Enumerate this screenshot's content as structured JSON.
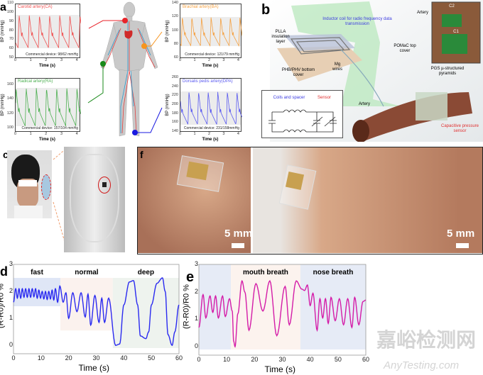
{
  "panels": {
    "a": "a",
    "b": "b",
    "c": "c",
    "d": "d",
    "e": "e",
    "f": "f"
  },
  "panel_a": {
    "xlabel": "Time (s)",
    "ylabel": "BP (mmHg)",
    "xticks": [
      "0",
      "1",
      "2",
      "3",
      "4"
    ],
    "charts": [
      {
        "title": "Carotid artery(CA)",
        "color": "#f05050",
        "ylim": [
          50,
          110
        ],
        "yticks": [
          "50",
          "60",
          "70",
          "80",
          "90",
          "100",
          "110"
        ],
        "range": [
          62,
          98
        ],
        "device": "Commercial device: 98/62 mmHg",
        "dot": "#e8232a"
      },
      {
        "title": "Brachial artery(BA)",
        "color": "#f5a040",
        "ylim": [
          60,
          140
        ],
        "yticks": [
          "60",
          "80",
          "100",
          "120",
          "140"
        ],
        "range": [
          79,
          121
        ],
        "device": "Commercial device: 121/79 mmHg",
        "dot": "#f7941d"
      },
      {
        "title": "Radical artery(RA)",
        "color": "#4caf50",
        "ylim": [
          95,
          170
        ],
        "yticks": [
          "100",
          "120",
          "140",
          "160"
        ],
        "range": [
          104,
          157
        ],
        "device": "Commercial device: 157/104 mmHg",
        "dot": "#1a8a1a"
      },
      {
        "title": "Dorsalis pedis artery(DPA)",
        "color": "#5a5af0",
        "ylim": [
          140,
          260
        ],
        "yticks": [
          "140",
          "160",
          "180",
          "200",
          "220",
          "240",
          "260"
        ],
        "range": [
          158,
          231
        ],
        "device": "Commercial device: 231/158mmHg",
        "dot": "#1a1ae0"
      }
    ]
  },
  "panel_b": {
    "inductor": "Inductor coil for radio frequency data transmission",
    "plla": "PLLA insulation layer",
    "pomac": "POMaC top cover",
    "phb": "PHB/PHV bottom cover",
    "mg": "Mg wires",
    "artery": "Artery",
    "artery_inset": "Artery",
    "pgs": "PGS µ-structured pyramids",
    "sensor_label": "Capacitive pressure sensor",
    "circuit_coils": "Coils and spacer",
    "circuit_sensor": "Sensor",
    "c1": "C1",
    "c2": "C2"
  },
  "panel_f": {
    "scale_left": "5 mm",
    "scale_right": "5 mm"
  },
  "chart_data": [
    {
      "type": "line",
      "panel": "d",
      "xlabel": "Time (s)",
      "ylabel": "(R-R0)/R0 %",
      "xlim": [
        0,
        60
      ],
      "ylim": [
        -0.1,
        3
      ],
      "xticks": [
        "0",
        "10",
        "20",
        "30",
        "40",
        "50",
        "60"
      ],
      "yticks": [
        "0",
        "1",
        "2",
        "3"
      ],
      "color": "#2a2af0",
      "regions": [
        {
          "label": "fast",
          "x": [
            0,
            17
          ],
          "y": [
            1.45,
            2.5
          ],
          "color": "#dfe6f6"
        },
        {
          "label": "normal",
          "x": [
            17,
            36
          ],
          "y": [
            0.55,
            2.5
          ],
          "color": "#fbf2ee"
        },
        {
          "label": "deep",
          "x": [
            36,
            60
          ],
          "y": [
            -0.1,
            2.5
          ],
          "color": "#eef3ee"
        }
      ],
      "x": [
        0,
        0.8,
        1.4,
        2.0,
        2.6,
        3.2,
        3.8,
        4.4,
        5.0,
        5.6,
        6.2,
        6.8,
        7.4,
        8.0,
        8.6,
        9.2,
        9.8,
        10.4,
        11.0,
        11.6,
        12.2,
        12.8,
        13.4,
        14.0,
        14.6,
        15.2,
        16.0,
        16.8,
        18,
        19,
        20,
        21.5,
        23,
        24.5,
        26,
        27,
        28,
        29.5,
        31,
        32,
        33,
        34.5,
        37,
        38.5,
        40,
        42,
        43.5,
        45,
        46,
        48,
        49,
        50,
        52,
        54,
        55,
        56,
        57.5,
        58.5,
        60
      ],
      "y": [
        1.6,
        2.1,
        1.75,
        2.1,
        1.75,
        2.1,
        1.78,
        2.1,
        1.78,
        2.1,
        1.78,
        2.1,
        1.8,
        2.1,
        1.75,
        2.05,
        1.75,
        2.0,
        1.72,
        2.0,
        1.7,
        2.0,
        1.72,
        2.05,
        1.68,
        2.1,
        1.6,
        2.2,
        1.6,
        1.95,
        1.0,
        1.95,
        1.25,
        1.95,
        1.05,
        1.9,
        0.75,
        1.85,
        0.85,
        1.75,
        0.85,
        1.75,
        0.0,
        0.05,
        1.5,
        2.35,
        2.4,
        1.5,
        0.35,
        0.25,
        0.5,
        1.5,
        2.3,
        2.5,
        2.0,
        0.4,
        0.0,
        0.5,
        1.5
      ]
    },
    {
      "type": "line",
      "panel": "e",
      "xlabel": "Time (s)",
      "ylabel": "(R-R0)/R0 %",
      "xlim": [
        0,
        60
      ],
      "ylim": [
        -0.1,
        3
      ],
      "xticks": [
        "0",
        "10",
        "20",
        "30",
        "40",
        "50",
        "60"
      ],
      "yticks": [
        "0",
        "1",
        "2",
        "3"
      ],
      "color": "#d41ca8",
      "regions": [
        {
          "label": "",
          "x": [
            0,
            11.5
          ],
          "y": [
            -0.1,
            3
          ],
          "color": "#e6ebf6"
        },
        {
          "label": "mouth breath",
          "x": [
            11.5,
            36.5
          ],
          "y": [
            -0.1,
            3
          ],
          "color": "#fcf3ee"
        },
        {
          "label": "nose breath",
          "x": [
            36.5,
            60
          ],
          "y": [
            -0.1,
            3
          ],
          "color": "#e6ebf6"
        }
      ],
      "x": [
        0,
        1.5,
        2.5,
        4,
        5,
        6,
        7,
        8.5,
        9.5,
        11,
        12,
        12.5,
        13,
        14,
        15.5,
        16.5,
        18,
        20.5,
        23,
        25.5,
        28,
        31,
        32.5,
        35,
        37,
        38,
        39,
        40,
        41,
        42.5,
        43.5,
        44.5,
        45.5,
        46.5,
        47.5,
        49,
        50.5,
        52,
        53.5,
        55,
        56,
        57.5,
        59,
        60
      ],
      "y": [
        0.7,
        1.9,
        1.05,
        1.85,
        1.25,
        1.85,
        1.05,
        1.85,
        1.1,
        1.75,
        1.3,
        0.2,
        0.0,
        1.2,
        2.4,
        2.0,
        0.6,
        2.3,
        1.3,
        2.4,
        0.4,
        2.2,
        0.8,
        2.4,
        2.1,
        2.05,
        2.25,
        1.5,
        1.95,
        0.6,
        1.75,
        1.05,
        1.75,
        0.85,
        1.8,
        0.95,
        1.75,
        0.8,
        1.75,
        0.7,
        1.8,
        0.8,
        1.65,
        1.7
      ]
    }
  ],
  "watermark": {
    "cn": "嘉峪检测网",
    "en": "AnyTesting.com"
  }
}
